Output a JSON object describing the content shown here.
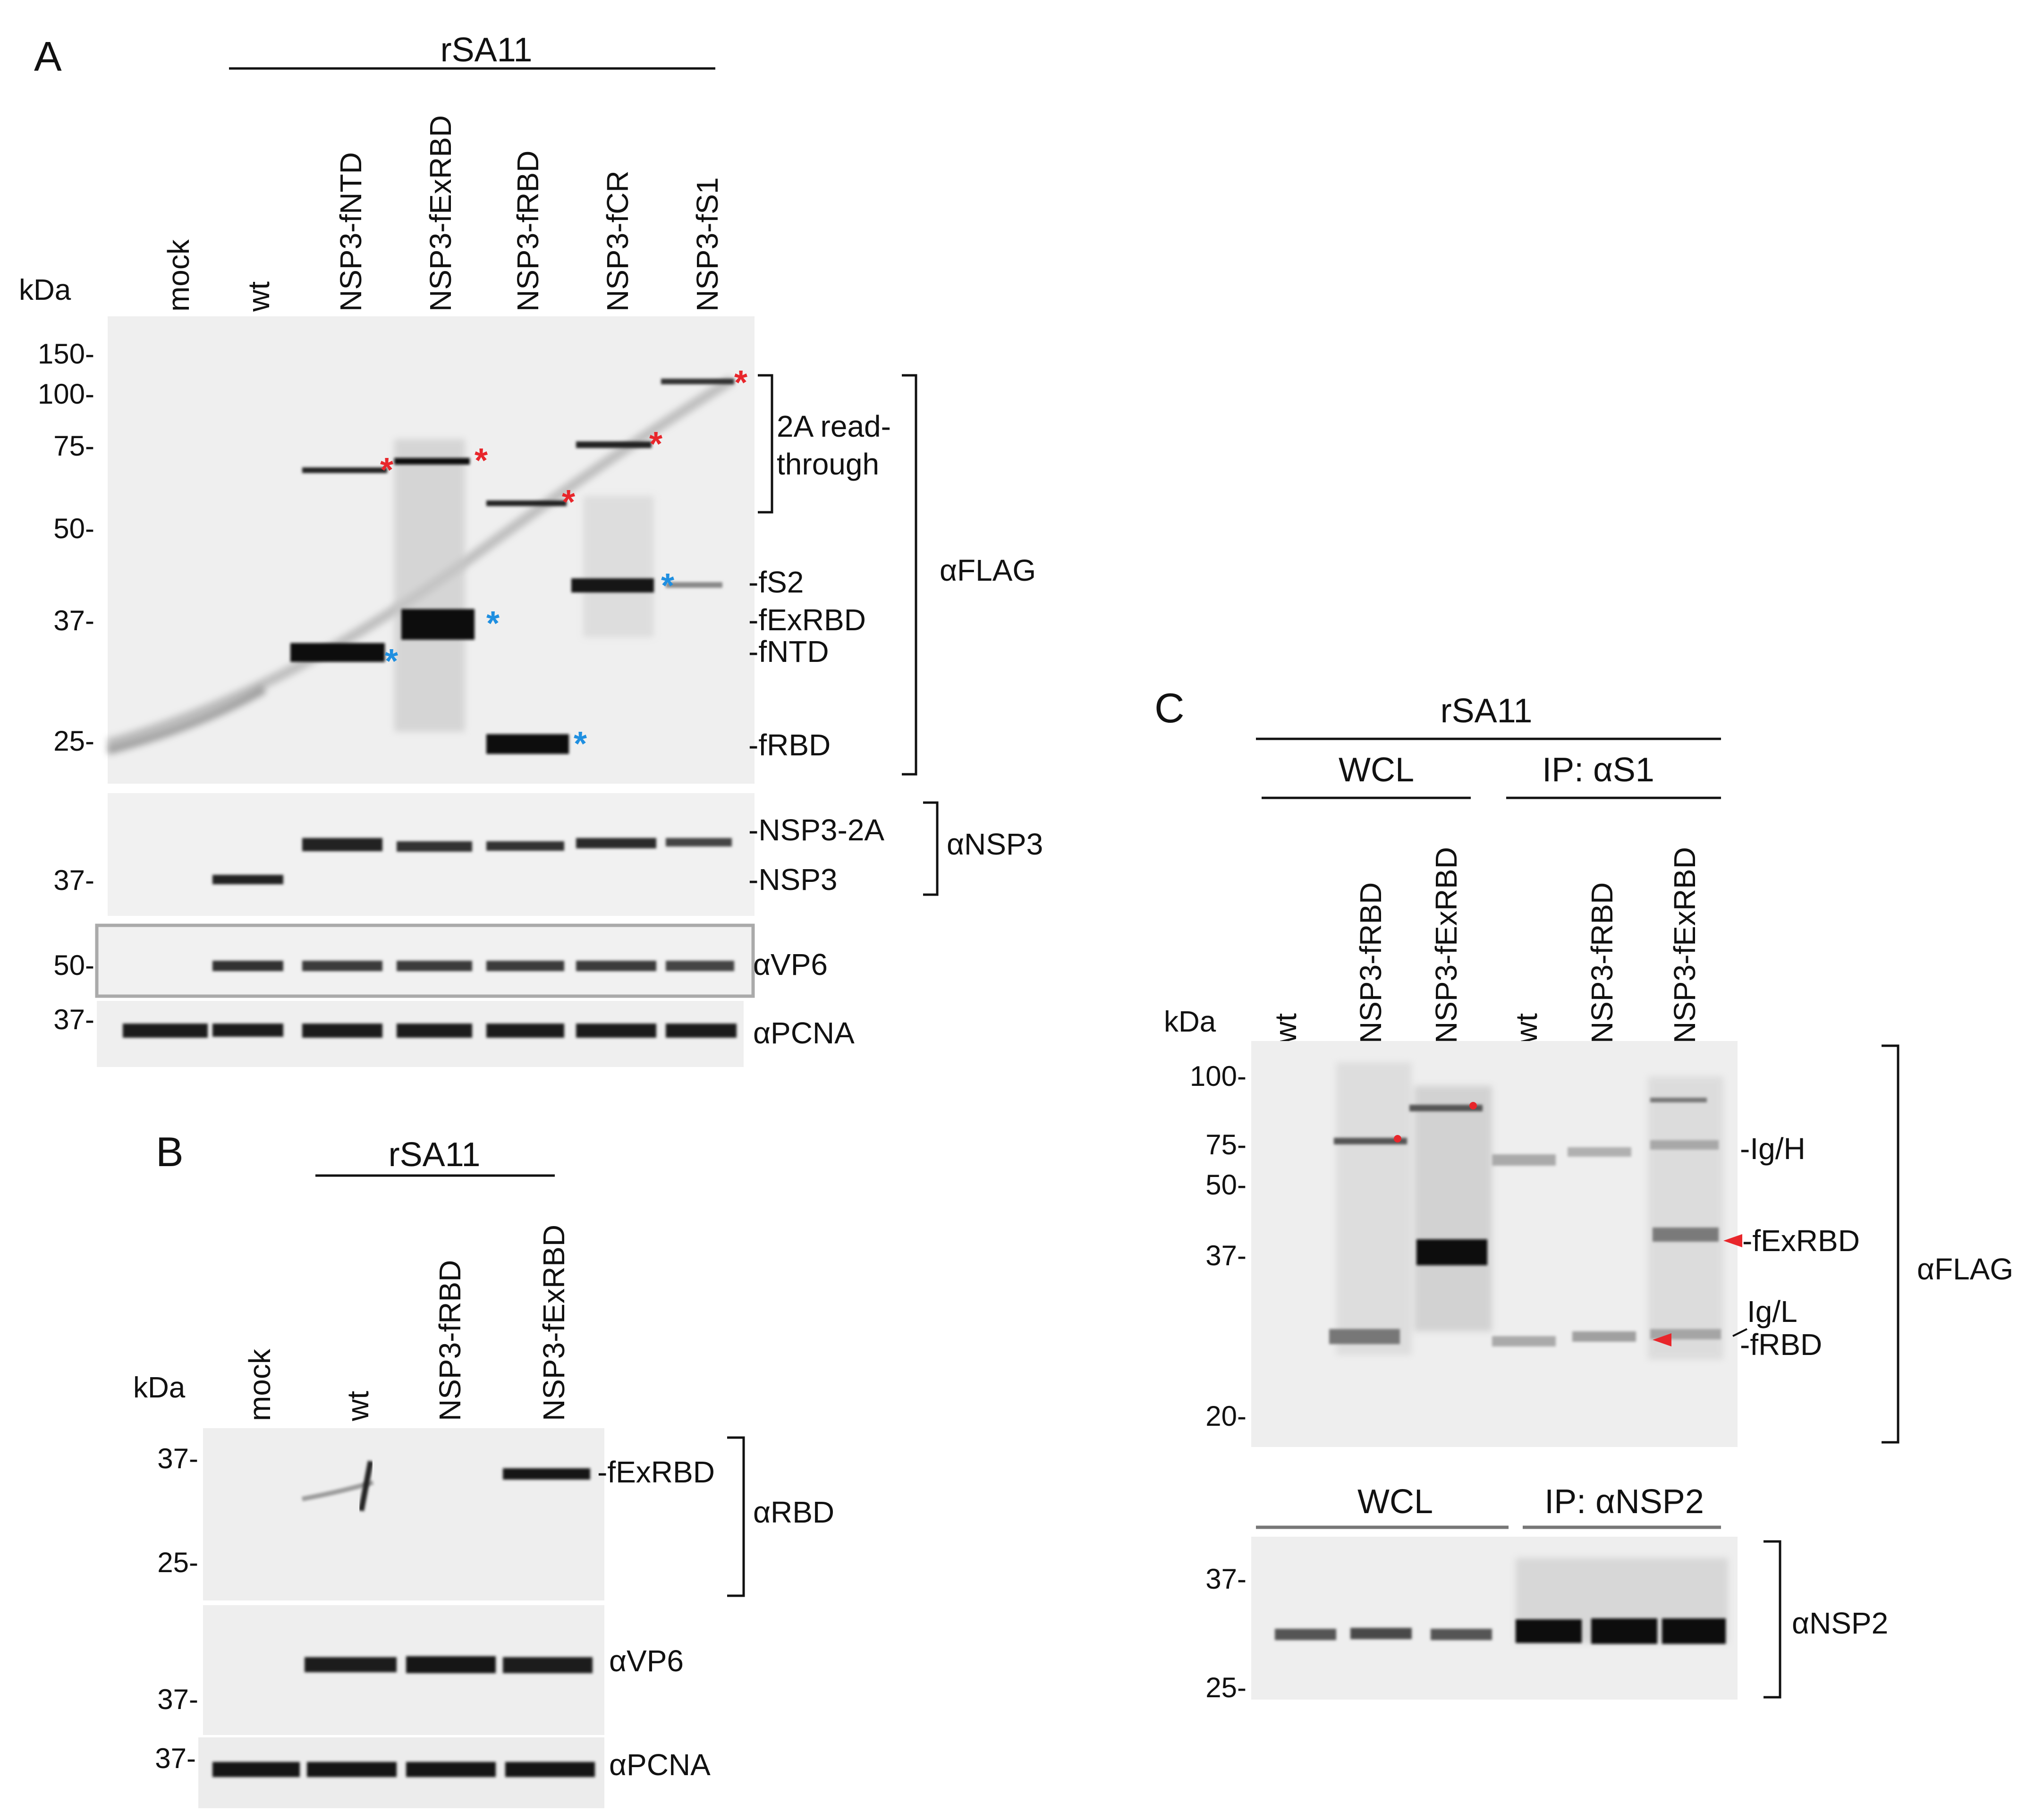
{
  "panels": {
    "A": {
      "letter": "A",
      "group_label": "rSA11",
      "kda_label": "kDa",
      "lanes": [
        "mock",
        "wt",
        "NSP3-fNTD",
        "NSP3-fExRBD",
        "NSP3-fRBD",
        "NSP3-fCR",
        "NSP3-fS1"
      ],
      "flag_mw": [
        "150-",
        "100-",
        "75-",
        "50-",
        "37-",
        "25-"
      ],
      "nsp3_mw": [
        "37-"
      ],
      "vp6_mw": [
        "50-"
      ],
      "pcna_mw": [
        "37-"
      ],
      "readthrough_label_line1": "2A read-",
      "readthrough_label_line2": "through",
      "band_labels": [
        "-fS2",
        "-fExRBD",
        "-fNTD",
        "-fRBD"
      ],
      "nsp3_band_labels": [
        "-NSP3-2A",
        "-NSP3"
      ],
      "antibodies": {
        "flag": "αFLAG",
        "nsp3": "αNSP3",
        "vp6": "αVP6",
        "pcna": "αPCNA"
      },
      "marker_colors": {
        "readthrough": "#e8262b",
        "product": "#1f8fe0"
      }
    },
    "B": {
      "letter": "B",
      "group_label": "rSA11",
      "kda_label": "kDa",
      "lanes": [
        "mock",
        "wt",
        "NSP3-fRBD",
        "NSP3-fExRBD"
      ],
      "rbd_mw": [
        "37-",
        "25-"
      ],
      "vp6_mw": [
        "37-"
      ],
      "pcna_mw": [
        "37-"
      ],
      "band_label": "-fExRBD",
      "antibodies": {
        "rbd": "αRBD",
        "vp6": "αVP6",
        "pcna": "αPCNA"
      }
    },
    "C": {
      "letter": "C",
      "group_label": "rSA11",
      "wcl_label": "WCL",
      "ip_s1_label": "IP: αS1",
      "kda_label": "kDa",
      "lanes": [
        "wt",
        "NSP3-fRBD",
        "NSP3-fExRBD",
        "wt",
        "NSP3-fRBD",
        "NSP3-fExRBD"
      ],
      "flag_mw": [
        "100-",
        "75-",
        "50-",
        "37-",
        "20-"
      ],
      "band_labels": [
        "-Ig/H",
        "-fExRBD",
        "Ig/L",
        "-fRBD"
      ],
      "flag_ab": "αFLAG",
      "lower_wcl_label": "WCL",
      "lower_ip_label": "IP: αNSP2",
      "nsp2_mw": [
        "37-",
        "25-"
      ],
      "nsp2_ab": "αNSP2",
      "marker_color": "#e8262b"
    }
  }
}
